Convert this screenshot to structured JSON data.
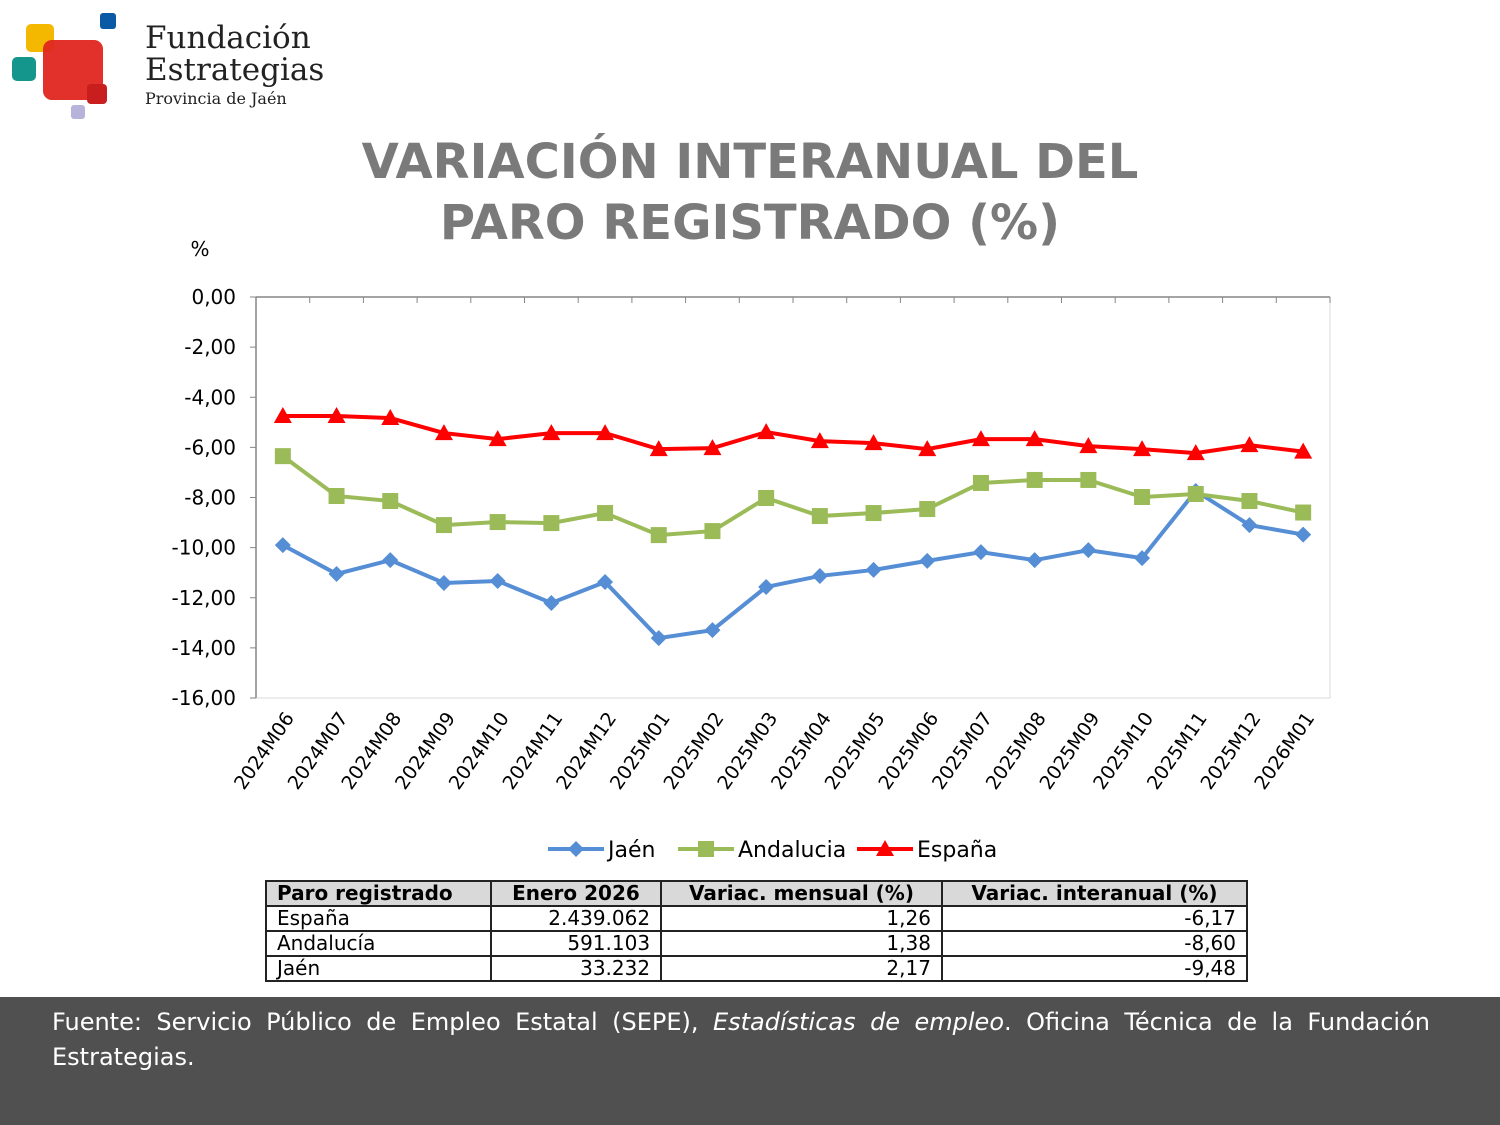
{
  "logo": {
    "line1": "Fundación",
    "line2": "Estrategias",
    "line3": "Provincia de Jaén"
  },
  "title_line1": "VARIACIÓN INTERANUAL DEL",
  "title_line2": "PARO REGISTRADO (%)",
  "chart_data": {
    "type": "line",
    "title": "VARIACIÓN INTERANUAL DEL PARO REGISTRADO (%)",
    "ylabel": "%",
    "ylim": [
      -16,
      0
    ],
    "yticks": [
      "0,00",
      "-2,00",
      "-4,00",
      "-6,00",
      "-8,00",
      "-10,00",
      "-12,00",
      "-14,00",
      "-16,00"
    ],
    "categories": [
      "2024M06",
      "2024M07",
      "2024M08",
      "2024M09",
      "2024M10",
      "2024M11",
      "2024M12",
      "2025M01",
      "2025M02",
      "2025M03",
      "2025M04",
      "2025M05",
      "2025M06",
      "2025M07",
      "2025M08",
      "2025M09",
      "2025M10",
      "2025M11",
      "2025M12",
      "2026M01"
    ],
    "legend_position": "bottom",
    "series": [
      {
        "name": "Jaén",
        "color": "#558ED5",
        "marker": "diamond",
        "values": [
          -9.9,
          -11.05,
          -10.5,
          -11.41,
          -11.33,
          -12.21,
          -11.37,
          -13.61,
          -13.29,
          -11.57,
          -11.13,
          -10.89,
          -10.53,
          -10.18,
          -10.5,
          -10.1,
          -10.42,
          -7.74,
          -9.1,
          -9.48
        ]
      },
      {
        "name": "Andalucia",
        "color": "#9BBB59",
        "marker": "square",
        "values": [
          -6.35,
          -7.94,
          -8.14,
          -9.1,
          -8.98,
          -9.02,
          -8.62,
          -9.5,
          -9.34,
          -8.02,
          -8.74,
          -8.62,
          -8.46,
          -7.42,
          -7.3,
          -7.3,
          -7.98,
          -7.86,
          -8.14,
          -8.6
        ]
      },
      {
        "name": "España",
        "color": "#FF0000",
        "marker": "triangle",
        "values": [
          -4.75,
          -4.75,
          -4.83,
          -5.43,
          -5.67,
          -5.43,
          -5.43,
          -6.07,
          -6.03,
          -5.39,
          -5.75,
          -5.83,
          -6.07,
          -5.67,
          -5.67,
          -5.95,
          -6.07,
          -6.23,
          -5.91,
          -6.17
        ]
      }
    ]
  },
  "table": {
    "headers": [
      "Paro registrado",
      "Enero 2026",
      "Variac. mensual (%)",
      "Variac. interanual (%)"
    ],
    "rows": [
      [
        "España",
        "2.439.062",
        "1,26",
        "-6,17"
      ],
      [
        "Andalucía",
        "591.103",
        "1,38",
        "-8,60"
      ],
      [
        "Jaén",
        "33.232",
        "2,17",
        "-9,48"
      ]
    ]
  },
  "footer": {
    "pre": "Fuente: Servicio Público de Empleo Estatal (SEPE), ",
    "italic": "Estadísticas de empleo",
    "post": ". Oficina Técnica de la Fundación Estrategias."
  }
}
